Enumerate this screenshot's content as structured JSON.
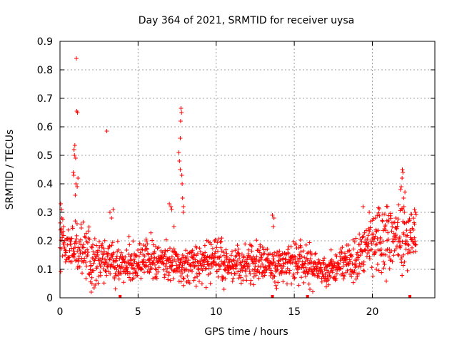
{
  "chart_data": {
    "type": "scatter",
    "title": "Day 364 of 2021, SRMTID for receiver uysa",
    "xlabel": "GPS time / hours",
    "ylabel": "SRMTID / TECUs",
    "xlim": [
      0,
      24
    ],
    "ylim": [
      0,
      0.9
    ],
    "xticks": [
      0,
      5,
      10,
      15,
      20
    ],
    "xtick_labels": [
      "0",
      "5",
      "10",
      "15",
      "20"
    ],
    "yticks": [
      0,
      0.1,
      0.2,
      0.3,
      0.4,
      0.5,
      0.6,
      0.7,
      0.8,
      0.9
    ],
    "ytick_labels": [
      "0",
      "0.1",
      "0.2",
      "0.3",
      "0.4",
      "0.5",
      "0.6",
      "0.7",
      "0.8",
      "0.9"
    ],
    "grid": true,
    "marker": "plus",
    "color": "#ff0000",
    "series": [
      {
        "name": "SRMTID",
        "baseline": [
          [
            0.0,
            0.2
          ],
          [
            0.5,
            0.15
          ],
          [
            1.0,
            0.18
          ],
          [
            2.0,
            0.14
          ],
          [
            3.0,
            0.13
          ],
          [
            4.0,
            0.12
          ],
          [
            5.0,
            0.13
          ],
          [
            6.0,
            0.13
          ],
          [
            7.0,
            0.12
          ],
          [
            8.0,
            0.11
          ],
          [
            9.0,
            0.12
          ],
          [
            10.0,
            0.13
          ],
          [
            11.0,
            0.12
          ],
          [
            12.0,
            0.12
          ],
          [
            13.0,
            0.12
          ],
          [
            14.0,
            0.12
          ],
          [
            15.0,
            0.13
          ],
          [
            16.0,
            0.11
          ],
          [
            17.0,
            0.09
          ],
          [
            18.0,
            0.12
          ],
          [
            19.0,
            0.13
          ],
          [
            19.5,
            0.2
          ],
          [
            20.0,
            0.19
          ],
          [
            21.0,
            0.21
          ],
          [
            22.0,
            0.22
          ],
          [
            22.8,
            0.2
          ]
        ],
        "highlights": [
          [
            0.05,
            0.33
          ],
          [
            0.1,
            0.31
          ],
          [
            0.12,
            0.28
          ],
          [
            0.9,
            0.52
          ],
          [
            0.93,
            0.5
          ],
          [
            0.95,
            0.535
          ],
          [
            0.85,
            0.44
          ],
          [
            0.88,
            0.43
          ],
          [
            1.0,
            0.49
          ],
          [
            1.05,
            0.84
          ],
          [
            1.08,
            0.655
          ],
          [
            1.12,
            0.65
          ],
          [
            1.15,
            0.42
          ],
          [
            1.02,
            0.4
          ],
          [
            1.1,
            0.39
          ],
          [
            0.98,
            0.36
          ],
          [
            3.0,
            0.585
          ],
          [
            3.2,
            0.3
          ],
          [
            3.3,
            0.28
          ],
          [
            3.4,
            0.31
          ],
          [
            7.0,
            0.33
          ],
          [
            7.1,
            0.32
          ],
          [
            7.15,
            0.31
          ],
          [
            7.3,
            0.25
          ],
          [
            7.6,
            0.51
          ],
          [
            7.65,
            0.48
          ],
          [
            7.7,
            0.56
          ],
          [
            7.72,
            0.62
          ],
          [
            7.75,
            0.665
          ],
          [
            7.78,
            0.65
          ],
          [
            7.8,
            0.43
          ],
          [
            7.82,
            0.4
          ],
          [
            7.7,
            0.45
          ],
          [
            7.85,
            0.35
          ],
          [
            7.9,
            0.32
          ],
          [
            7.88,
            0.3
          ],
          [
            13.6,
            0.29
          ],
          [
            13.7,
            0.28
          ],
          [
            13.65,
            0.25
          ],
          [
            19.4,
            0.32
          ],
          [
            19.8,
            0.3
          ],
          [
            20.2,
            0.28
          ],
          [
            21.5,
            0.28
          ],
          [
            21.8,
            0.38
          ],
          [
            21.85,
            0.39
          ],
          [
            21.9,
            0.42
          ],
          [
            21.92,
            0.45
          ],
          [
            21.95,
            0.44
          ],
          [
            22.0,
            0.35
          ],
          [
            22.02,
            0.32
          ],
          [
            22.05,
            0.3
          ],
          [
            22.7,
            0.31
          ],
          [
            22.75,
            0.3
          ],
          [
            2.0,
            0.02
          ],
          [
            2.05,
            0.05
          ],
          [
            10.5,
            0.03
          ],
          [
            16.0,
            0.03
          ]
        ]
      }
    ],
    "data_gaps_x": [
      3.85,
      13.6,
      15.85,
      22.4
    ]
  }
}
